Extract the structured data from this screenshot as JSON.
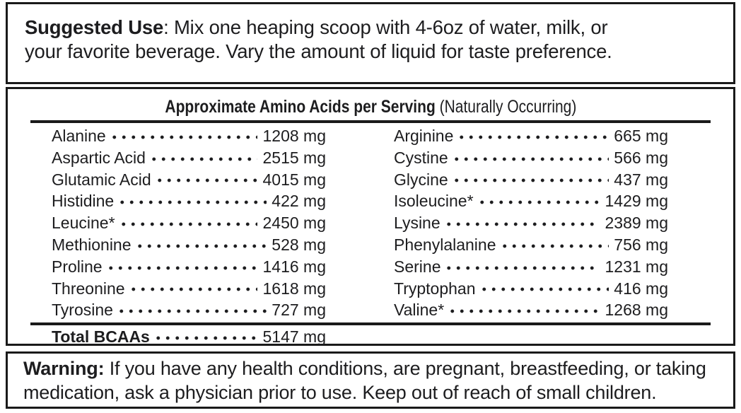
{
  "suggested_use": {
    "lead": "Suggested Use",
    "line1_rest": ": Mix one heaping scoop with 4-6oz of water, milk, or",
    "line2": "your favorite beverage. Vary the amount of liquid for taste preference."
  },
  "amino_table": {
    "title_bold": "Approximate Amino Acids per Serving",
    "title_note": " (Naturally Occurring)",
    "left_column": [
      {
        "name": "Alanine",
        "value": "1208 mg"
      },
      {
        "name": "Aspartic Acid",
        "value": "2515 mg"
      },
      {
        "name": "Glutamic Acid",
        "value": "4015 mg"
      },
      {
        "name": "Histidine",
        "value": "422 mg"
      },
      {
        "name": "Leucine*",
        "value": "2450 mg"
      },
      {
        "name": "Methionine",
        "value": "528 mg"
      },
      {
        "name": "Proline",
        "value": "1416 mg"
      },
      {
        "name": "Threonine",
        "value": "1618 mg"
      },
      {
        "name": "Tyrosine",
        "value": "727 mg"
      }
    ],
    "right_column": [
      {
        "name": "Arginine",
        "value": "665 mg"
      },
      {
        "name": "Cystine",
        "value": "566 mg"
      },
      {
        "name": "Glycine",
        "value": "437 mg"
      },
      {
        "name": "Isoleucine*",
        "value": "1429 mg"
      },
      {
        "name": "Lysine",
        "value": "2389 mg"
      },
      {
        "name": "Phenylalanine",
        "value": "756 mg"
      },
      {
        "name": "Serine",
        "value": "1231 mg"
      },
      {
        "name": "Tryptophan",
        "value": "416 mg"
      },
      {
        "name": "Valine*",
        "value": "1268 mg"
      }
    ],
    "total": {
      "name": "Total BCAAs",
      "value": "5147 mg"
    }
  },
  "warning": {
    "lead": "Warning:",
    "line1_rest": " If you have any health conditions, are pregnant, breastfeeding, or taking",
    "line2": "medication, ask a physician prior to use. Keep out of reach of small children."
  }
}
